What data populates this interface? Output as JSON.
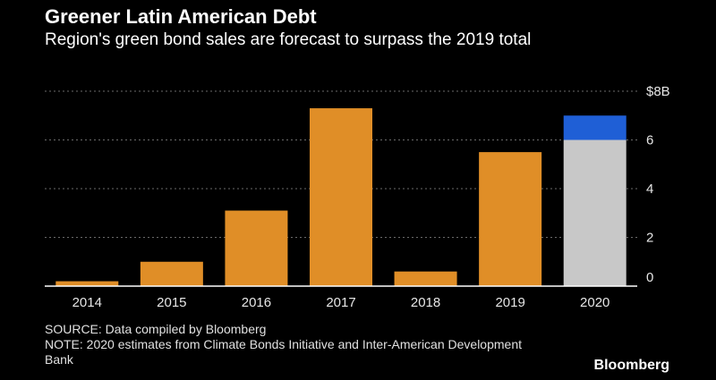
{
  "header": {
    "title": "Greener Latin American Debt",
    "subtitle": "Region's green bond sales are forecast to surpass the 2019 total"
  },
  "footer": {
    "source": "SOURCE: Data compiled by Bloomberg",
    "note": "NOTE: 2020 estimates from Climate Bonds Initiative and Inter-American Development Bank"
  },
  "brand": "Bloomberg",
  "colors": {
    "bar": "#e08e27",
    "forecast_base": "#c8c8c8",
    "forecast_top": "#1f5fd6",
    "grid": "#6a6a6a",
    "axis": "#ffffff"
  },
  "chart_data": {
    "type": "bar",
    "stacked": true,
    "categories": [
      "2014",
      "2015",
      "2016",
      "2017",
      "2018",
      "2019",
      "2020"
    ],
    "series": [
      {
        "values": [
          0.2,
          1.0,
          3.1,
          7.3,
          0.6,
          5.5,
          6.0
        ]
      },
      {
        "values": [
          0,
          0,
          0,
          0,
          0,
          0,
          1.0
        ]
      }
    ],
    "ylim": [
      0,
      8
    ],
    "yticks": [
      0,
      2,
      4,
      6,
      8
    ],
    "ytick_labels": [
      "0",
      "2",
      "4",
      "6",
      "$8B"
    ],
    "grid": true,
    "y_axis_position": "right"
  }
}
